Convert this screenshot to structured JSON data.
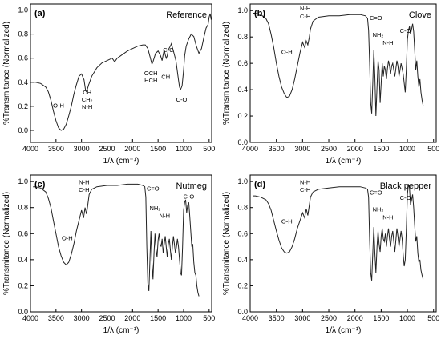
{
  "chart_data": [
    {
      "type": "line",
      "title": "(a)",
      "sample": "Reference",
      "xlabel": "1/λ (cm⁻¹)",
      "ylabel": "%Transmitance (Normalized)",
      "xlim": [
        4000,
        450
      ],
      "ylim": [
        -0.1,
        1.05
      ],
      "xticks": [
        4000,
        3500,
        3000,
        2500,
        2000,
        1500,
        1000,
        500
      ],
      "yticks": [
        0.0,
        0.2,
        0.4,
        0.6,
        0.8,
        1.0
      ],
      "series": [
        {
          "x": [
            4000,
            3900,
            3800,
            3700,
            3650,
            3600,
            3550,
            3500,
            3450,
            3400,
            3350,
            3300,
            3250,
            3200,
            3150,
            3100,
            3050,
            3000,
            2950,
            2920,
            2900,
            2880,
            2860,
            2850,
            2800,
            2700,
            2600,
            2500,
            2400,
            2350,
            2300,
            2200,
            2100,
            2000,
            1900,
            1800,
            1750,
            1700,
            1650,
            1620,
            1600,
            1550,
            1500,
            1450,
            1420,
            1400,
            1380,
            1360,
            1340,
            1320,
            1300,
            1260,
            1240,
            1200,
            1150,
            1100,
            1080,
            1060,
            1030,
            1000,
            980,
            950,
            900,
            850,
            800,
            750,
            700,
            650,
            600,
            560,
            520,
            500,
            480,
            460
          ],
          "y": [
            0.4,
            0.4,
            0.39,
            0.36,
            0.32,
            0.25,
            0.16,
            0.08,
            0.02,
            0.0,
            0.01,
            0.05,
            0.12,
            0.2,
            0.3,
            0.38,
            0.45,
            0.47,
            0.42,
            0.33,
            0.32,
            0.35,
            0.38,
            0.39,
            0.45,
            0.52,
            0.56,
            0.58,
            0.6,
            0.57,
            0.6,
            0.63,
            0.66,
            0.68,
            0.7,
            0.71,
            0.71,
            0.68,
            0.6,
            0.55,
            0.57,
            0.64,
            0.66,
            0.62,
            0.58,
            0.63,
            0.67,
            0.63,
            0.6,
            0.62,
            0.67,
            0.7,
            0.72,
            0.66,
            0.58,
            0.42,
            0.36,
            0.34,
            0.37,
            0.5,
            0.62,
            0.7,
            0.76,
            0.8,
            0.78,
            0.7,
            0.64,
            0.68,
            0.78,
            0.85,
            0.88,
            0.94,
            0.97,
            0.92
          ]
        }
      ],
      "annotations": [
        {
          "text": "O-H",
          "x": 3450,
          "y": 0.19
        },
        {
          "text": "CH",
          "x": 2890,
          "y": 0.3
        },
        {
          "text": "CH₂",
          "x": 2890,
          "y": 0.24
        },
        {
          "text": "N-H",
          "x": 2890,
          "y": 0.18
        },
        {
          "text": "OCH",
          "x": 1640,
          "y": 0.46
        },
        {
          "text": "HCH",
          "x": 1640,
          "y": 0.4
        },
        {
          "text": "C-C",
          "x": 1300,
          "y": 0.65
        },
        {
          "text": "CH",
          "x": 1350,
          "y": 0.43
        },
        {
          "text": "C-O",
          "x": 1040,
          "y": 0.24
        }
      ]
    },
    {
      "type": "line",
      "title": "(b)",
      "sample": "Clove",
      "xlabel": "1/λ (cm⁻¹)",
      "ylabel": "%Transmitance (Normalized)",
      "xlim": [
        4000,
        450
      ],
      "ylim": [
        0.0,
        1.05
      ],
      "xticks": [
        4000,
        3500,
        3000,
        2500,
        2000,
        1500,
        1000,
        500
      ],
      "yticks": [
        0.0,
        0.2,
        0.4,
        0.6,
        0.8,
        1.0
      ],
      "series": [
        {
          "x": [
            3950,
            3900,
            3800,
            3700,
            3650,
            3600,
            3550,
            3500,
            3450,
            3400,
            3350,
            3300,
            3250,
            3200,
            3150,
            3100,
            3050,
            3000,
            2960,
            2930,
            2900,
            2870,
            2850,
            2800,
            2700,
            2500,
            2300,
            2100,
            1900,
            1800,
            1760,
            1740,
            1720,
            1700,
            1680,
            1660,
            1640,
            1620,
            1600,
            1580,
            1560,
            1540,
            1520,
            1500,
            1480,
            1460,
            1440,
            1420,
            1400,
            1380,
            1360,
            1340,
            1320,
            1300,
            1280,
            1260,
            1240,
            1220,
            1200,
            1180,
            1160,
            1140,
            1120,
            1100,
            1080,
            1060,
            1040,
            1020,
            1000,
            980,
            960,
            940,
            920,
            900,
            880,
            860,
            840,
            820,
            800,
            780,
            760,
            740,
            720,
            700
          ],
          "y": [
            0.98,
            0.98,
            0.97,
            0.94,
            0.9,
            0.82,
            0.72,
            0.6,
            0.5,
            0.42,
            0.37,
            0.34,
            0.35,
            0.4,
            0.48,
            0.58,
            0.68,
            0.76,
            0.72,
            0.77,
            0.74,
            0.8,
            0.86,
            0.92,
            0.95,
            0.96,
            0.96,
            0.97,
            0.97,
            0.96,
            0.94,
            0.85,
            0.6,
            0.3,
            0.22,
            0.45,
            0.7,
            0.5,
            0.2,
            0.42,
            0.62,
            0.55,
            0.3,
            0.45,
            0.6,
            0.5,
            0.58,
            0.55,
            0.48,
            0.56,
            0.62,
            0.58,
            0.52,
            0.58,
            0.6,
            0.55,
            0.5,
            0.56,
            0.62,
            0.58,
            0.5,
            0.55,
            0.6,
            0.56,
            0.52,
            0.45,
            0.38,
            0.55,
            0.78,
            0.85,
            0.88,
            0.82,
            0.86,
            0.9,
            0.84,
            0.7,
            0.55,
            0.62,
            0.5,
            0.42,
            0.48,
            0.38,
            0.32,
            0.28
          ]
        }
      ],
      "annotations": [
        {
          "text": "O-H",
          "x": 3300,
          "y": 0.67
        },
        {
          "text": "N-H",
          "x": 2950,
          "y": 1.0
        },
        {
          "text": "C-H",
          "x": 2950,
          "y": 0.94
        },
        {
          "text": "C=O",
          "x": 1600,
          "y": 0.93
        },
        {
          "text": "NH₂",
          "x": 1560,
          "y": 0.8
        },
        {
          "text": "N-H",
          "x": 1370,
          "y": 0.74
        },
        {
          "text": "C-O",
          "x": 1040,
          "y": 0.83
        }
      ]
    },
    {
      "type": "line",
      "title": "(c)",
      "sample": "Nutmeg",
      "xlabel": "1/λ (cm⁻¹)",
      "ylabel": "%Transmitance (Normalized)",
      "xlim": [
        4000,
        450
      ],
      "ylim": [
        0.0,
        1.05
      ],
      "xticks": [
        4000,
        3500,
        3000,
        2500,
        2000,
        1500,
        1000,
        500
      ],
      "yticks": [
        0.0,
        0.2,
        0.4,
        0.6,
        0.8,
        1.0
      ],
      "series": [
        {
          "x": [
            3950,
            3900,
            3800,
            3700,
            3650,
            3600,
            3550,
            3500,
            3450,
            3400,
            3350,
            3300,
            3250,
            3200,
            3150,
            3100,
            3050,
            3000,
            2960,
            2930,
            2900,
            2870,
            2850,
            2800,
            2700,
            2500,
            2300,
            2100,
            1900,
            1800,
            1760,
            1740,
            1720,
            1700,
            1680,
            1660,
            1640,
            1620,
            1600,
            1580,
            1560,
            1540,
            1520,
            1500,
            1480,
            1460,
            1440,
            1420,
            1400,
            1380,
            1360,
            1340,
            1320,
            1300,
            1280,
            1260,
            1240,
            1220,
            1200,
            1180,
            1160,
            1140,
            1120,
            1100,
            1080,
            1060,
            1040,
            1020,
            1000,
            980,
            960,
            940,
            920,
            900,
            880,
            860,
            840,
            820,
            800,
            780,
            760,
            740,
            720,
            700
          ],
          "y": [
            0.96,
            0.96,
            0.95,
            0.92,
            0.87,
            0.8,
            0.7,
            0.6,
            0.5,
            0.43,
            0.38,
            0.36,
            0.38,
            0.44,
            0.52,
            0.62,
            0.7,
            0.78,
            0.72,
            0.8,
            0.75,
            0.84,
            0.9,
            0.94,
            0.96,
            0.97,
            0.97,
            0.98,
            0.98,
            0.97,
            0.96,
            0.88,
            0.5,
            0.22,
            0.16,
            0.4,
            0.62,
            0.38,
            0.25,
            0.45,
            0.6,
            0.48,
            0.42,
            0.55,
            0.6,
            0.52,
            0.5,
            0.56,
            0.45,
            0.52,
            0.58,
            0.5,
            0.42,
            0.52,
            0.56,
            0.48,
            0.4,
            0.5,
            0.58,
            0.52,
            0.45,
            0.5,
            0.56,
            0.5,
            0.4,
            0.3,
            0.28,
            0.5,
            0.78,
            0.84,
            0.86,
            0.76,
            0.82,
            0.84,
            0.74,
            0.62,
            0.5,
            0.52,
            0.38,
            0.3,
            0.28,
            0.2,
            0.15,
            0.12
          ]
        }
      ],
      "annotations": [
        {
          "text": "O-H",
          "x": 3280,
          "y": 0.55
        },
        {
          "text": "N-H",
          "x": 2950,
          "y": 0.98
        },
        {
          "text": "C-H",
          "x": 2950,
          "y": 0.92
        },
        {
          "text": "C=O",
          "x": 1600,
          "y": 0.93
        },
        {
          "text": "NH₂",
          "x": 1560,
          "y": 0.78
        },
        {
          "text": "N-H",
          "x": 1370,
          "y": 0.72
        },
        {
          "text": "C-O",
          "x": 900,
          "y": 0.87
        }
      ]
    },
    {
      "type": "line",
      "title": "(d)",
      "sample": "Black pepper",
      "xlabel": "1/λ (cm⁻¹)",
      "ylabel": "%Transmitance (Normalized)",
      "xlim": [
        4000,
        450
      ],
      "ylim": [
        0.0,
        1.05
      ],
      "xticks": [
        4000,
        3500,
        3000,
        2500,
        2000,
        1500,
        1000,
        500
      ],
      "yticks": [
        0.0,
        0.2,
        0.4,
        0.6,
        0.8,
        1.0
      ],
      "series": [
        {
          "x": [
            3950,
            3900,
            3800,
            3700,
            3650,
            3600,
            3550,
            3500,
            3450,
            3400,
            3350,
            3300,
            3250,
            3200,
            3150,
            3100,
            3050,
            3000,
            2960,
            2930,
            2900,
            2870,
            2850,
            2800,
            2700,
            2500,
            2300,
            2100,
            1900,
            1800,
            1760,
            1740,
            1720,
            1700,
            1680,
            1660,
            1640,
            1620,
            1600,
            1580,
            1560,
            1540,
            1520,
            1500,
            1480,
            1460,
            1440,
            1420,
            1400,
            1380,
            1360,
            1340,
            1320,
            1300,
            1280,
            1260,
            1240,
            1220,
            1200,
            1180,
            1160,
            1140,
            1120,
            1100,
            1080,
            1060,
            1040,
            1020,
            1000,
            980,
            960,
            940,
            920,
            900,
            880,
            860,
            840,
            820,
            800,
            780,
            760,
            740,
            720,
            700
          ],
          "y": [
            0.89,
            0.89,
            0.88,
            0.86,
            0.83,
            0.78,
            0.7,
            0.62,
            0.55,
            0.49,
            0.46,
            0.45,
            0.46,
            0.5,
            0.56,
            0.64,
            0.7,
            0.76,
            0.72,
            0.79,
            0.74,
            0.82,
            0.88,
            0.92,
            0.94,
            0.95,
            0.96,
            0.96,
            0.96,
            0.95,
            0.94,
            0.88,
            0.55,
            0.3,
            0.24,
            0.45,
            0.65,
            0.45,
            0.3,
            0.5,
            0.62,
            0.52,
            0.46,
            0.58,
            0.64,
            0.56,
            0.54,
            0.6,
            0.5,
            0.58,
            0.64,
            0.56,
            0.5,
            0.58,
            0.62,
            0.54,
            0.46,
            0.55,
            0.64,
            0.58,
            0.5,
            0.56,
            0.62,
            0.56,
            0.44,
            0.35,
            0.4,
            0.62,
            0.9,
            0.98,
            0.95,
            0.82,
            0.86,
            0.9,
            0.8,
            0.66,
            0.54,
            0.58,
            0.45,
            0.38,
            0.4,
            0.32,
            0.28,
            0.25
          ]
        }
      ],
      "annotations": [
        {
          "text": "O-H",
          "x": 3300,
          "y": 0.68
        },
        {
          "text": "N-H",
          "x": 2950,
          "y": 0.98
        },
        {
          "text": "C-H",
          "x": 2950,
          "y": 0.92
        },
        {
          "text": "C=O",
          "x": 1600,
          "y": 0.9
        },
        {
          "text": "NH₂",
          "x": 1560,
          "y": 0.77
        },
        {
          "text": "N-H",
          "x": 1370,
          "y": 0.71
        },
        {
          "text": "C-O",
          "x": 1040,
          "y": 0.86
        }
      ]
    }
  ]
}
